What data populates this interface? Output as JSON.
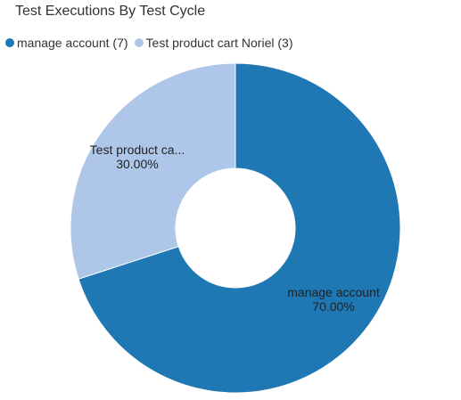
{
  "chart_data": {
    "type": "pie",
    "title": "Test Executions By Test Cycle",
    "legend_position": "top-left",
    "donut": true,
    "categories": [
      "manage account",
      "Test product cart Noriel"
    ],
    "values": [
      7,
      3
    ],
    "legend_labels": [
      "manage account (7)",
      "Test product cart Noriel (3)"
    ],
    "slice_labels": [
      "manage account",
      "Test product ca..."
    ],
    "percent_labels": [
      "70.00%",
      "30.00%"
    ],
    "colors": [
      "#1f77b4",
      "#aec7e8"
    ]
  }
}
